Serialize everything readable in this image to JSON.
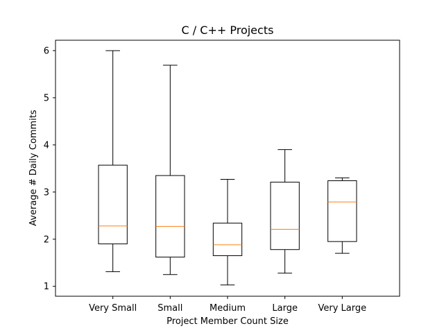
{
  "chart_data": {
    "type": "box",
    "title": "C / C++ Projects",
    "xlabel": "Project Member Count Size",
    "ylabel": "Average # Daily Commits",
    "ylim": [
      0.79,
      6.22
    ],
    "yticks": [
      "1",
      "2",
      "3",
      "4",
      "5",
      "6"
    ],
    "categories": [
      "Very Small",
      "Small",
      "Medium",
      "Large",
      "Very Large"
    ],
    "boxes": [
      {
        "whisker_low": 1.31,
        "q1": 1.9,
        "median": 2.28,
        "q3": 3.57,
        "whisker_high": 6.0
      },
      {
        "whisker_low": 1.25,
        "q1": 1.62,
        "median": 2.27,
        "q3": 3.35,
        "whisker_high": 5.69
      },
      {
        "whisker_low": 1.03,
        "q1": 1.65,
        "median": 1.88,
        "q3": 2.34,
        "whisker_high": 3.27
      },
      {
        "whisker_low": 1.28,
        "q1": 1.78,
        "median": 2.21,
        "q3": 3.21,
        "whisker_high": 3.9
      },
      {
        "whisker_low": 1.7,
        "q1": 1.95,
        "median": 2.79,
        "q3": 3.24,
        "whisker_high": 3.3
      }
    ],
    "colors": {
      "box": "#000000",
      "median": "#ff7f0e"
    },
    "grid": false,
    "legend": "none"
  }
}
